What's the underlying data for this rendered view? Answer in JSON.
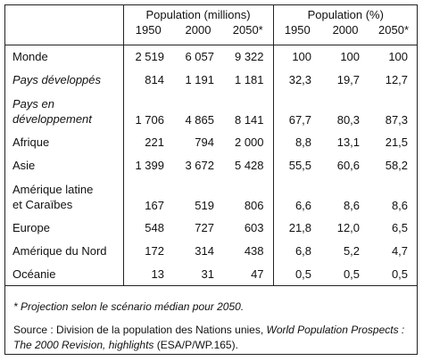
{
  "table": {
    "group_headers": [
      "Population (millions)",
      "Population (%)"
    ],
    "columns": [
      "1950",
      "2000",
      "2050*",
      "1950",
      "2000",
      "2050*"
    ],
    "rows": [
      {
        "label": "Monde",
        "italic": false,
        "cells": [
          "2 519",
          "6 057",
          "9 322",
          "100",
          "100",
          "100"
        ]
      },
      {
        "label": "Pays développés",
        "italic": true,
        "cells": [
          "814",
          "1 191",
          "1 181",
          "32,3",
          "19,7",
          "12,7"
        ]
      },
      {
        "label": "Pays en\ndéveloppement",
        "italic": true,
        "cells": [
          "1 706",
          "4 865",
          "8 141",
          "67,7",
          "80,3",
          "87,3"
        ]
      },
      {
        "label": "Afrique",
        "italic": false,
        "cells": [
          "221",
          "794",
          "2 000",
          "8,8",
          "13,1",
          "21,5"
        ]
      },
      {
        "label": "Asie",
        "italic": false,
        "cells": [
          "1 399",
          "3 672",
          "5 428",
          "55,5",
          "60,6",
          "58,2"
        ]
      },
      {
        "label": "Amérique latine\net Caraïbes",
        "italic": false,
        "cells": [
          "167",
          "519",
          "806",
          "6,6",
          "8,6",
          "8,6"
        ]
      },
      {
        "label": "Europe",
        "italic": false,
        "cells": [
          "548",
          "727",
          "603",
          "21,8",
          "12,0",
          "6,5"
        ]
      },
      {
        "label": "Amérique du Nord",
        "italic": false,
        "cells": [
          "172",
          "314",
          "438",
          "6,8",
          "5,2",
          "4,7"
        ]
      },
      {
        "label": "Océanie",
        "italic": false,
        "cells": [
          "13",
          "31",
          "47",
          "0,5",
          "0,5",
          "0,5"
        ]
      }
    ]
  },
  "note": "* Projection selon le scénario médian pour 2050.",
  "source": {
    "prefix": "Source : Division de la population des Nations unies, ",
    "title": "World Population Prospects : The 2000 Revision, highlights",
    "suffix": " (ESA/P/WP.165)."
  }
}
